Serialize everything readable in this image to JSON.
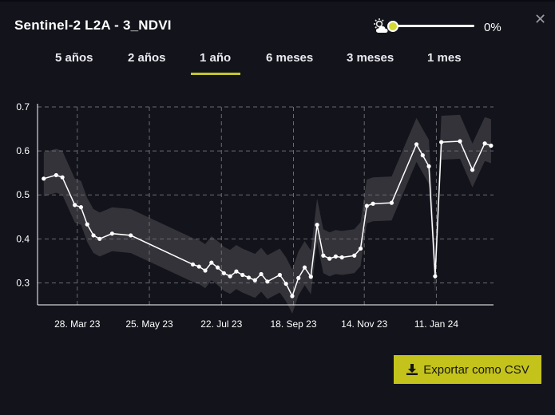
{
  "title": "Sentinel-2 L2A - 3_NDVI",
  "cloud_filter": {
    "icon": "partly-cloudy-icon",
    "value_label": "0%",
    "value_fraction": 0.0
  },
  "tabs": [
    {
      "label": "5 años",
      "active": false
    },
    {
      "label": "2 años",
      "active": false
    },
    {
      "label": "1 año",
      "active": true
    },
    {
      "label": "6 meses",
      "active": false
    },
    {
      "label": "3 meses",
      "active": false
    },
    {
      "label": "1 mes",
      "active": false
    }
  ],
  "export_label": "Exportar como CSV",
  "colors": {
    "accent": "#c5c62a",
    "background": "#12131b",
    "band": "#3a3a3e",
    "line": "#ffffff"
  },
  "chart_data": {
    "type": "line",
    "ylim": [
      0.25,
      0.7
    ],
    "yticks": [
      0.3,
      0.4,
      0.5,
      0.6,
      0.7
    ],
    "ytick_labels": [
      "0.3",
      "0.4",
      "0.5",
      "0.6",
      "0.7"
    ],
    "x_range": [
      "2023-02-24",
      "2024-02-26"
    ],
    "xticks": [
      "2023-03-28",
      "2023-05-25",
      "2023-07-22",
      "2023-09-18",
      "2023-11-14",
      "2024-01-11"
    ],
    "xtick_labels": [
      "28. Mar 23",
      "25. May 23",
      "22. Jul 23",
      "18. Sep 23",
      "14. Nov 23",
      "11. Jan 24"
    ],
    "grid": true,
    "series": [
      {
        "x": [
          "2023-03-01",
          "2023-03-11",
          "2023-03-16",
          "2023-03-26",
          "2023-03-31",
          "2023-04-05",
          "2023-04-10",
          "2023-04-15",
          "2023-04-25",
          "2023-05-10",
          "2023-06-29",
          "2023-07-04",
          "2023-07-09",
          "2023-07-14",
          "2023-07-19",
          "2023-07-24",
          "2023-07-29",
          "2023-08-03",
          "2023-08-08",
          "2023-08-13",
          "2023-08-18",
          "2023-08-23",
          "2023-08-28",
          "2023-09-07",
          "2023-09-12",
          "2023-09-17",
          "2023-09-22",
          "2023-09-27",
          "2023-10-02",
          "2023-10-07",
          "2023-10-12",
          "2023-10-17",
          "2023-10-22",
          "2023-10-27",
          "2023-11-06",
          "2023-11-11",
          "2023-11-16",
          "2023-11-21",
          "2023-12-06",
          "2023-12-26",
          "2023-12-31",
          "2024-01-05",
          "2024-01-10",
          "2024-01-15",
          "2024-01-30",
          "2024-02-09",
          "2024-02-19",
          "2024-02-24"
        ],
        "y": [
          0.537,
          0.545,
          0.54,
          0.477,
          0.472,
          0.433,
          0.408,
          0.4,
          0.412,
          0.408,
          0.342,
          0.337,
          0.328,
          0.346,
          0.335,
          0.322,
          0.315,
          0.326,
          0.318,
          0.312,
          0.306,
          0.32,
          0.303,
          0.318,
          0.298,
          0.27,
          0.311,
          0.335,
          0.314,
          0.432,
          0.362,
          0.355,
          0.36,
          0.358,
          0.362,
          0.378,
          0.475,
          0.48,
          0.482,
          0.615,
          0.59,
          0.565,
          0.315,
          0.62,
          0.622,
          0.557,
          0.617,
          0.612
        ]
      }
    ],
    "uncertainty_band": {
      "style": "shaded",
      "color": "#3a3a3e"
    }
  }
}
